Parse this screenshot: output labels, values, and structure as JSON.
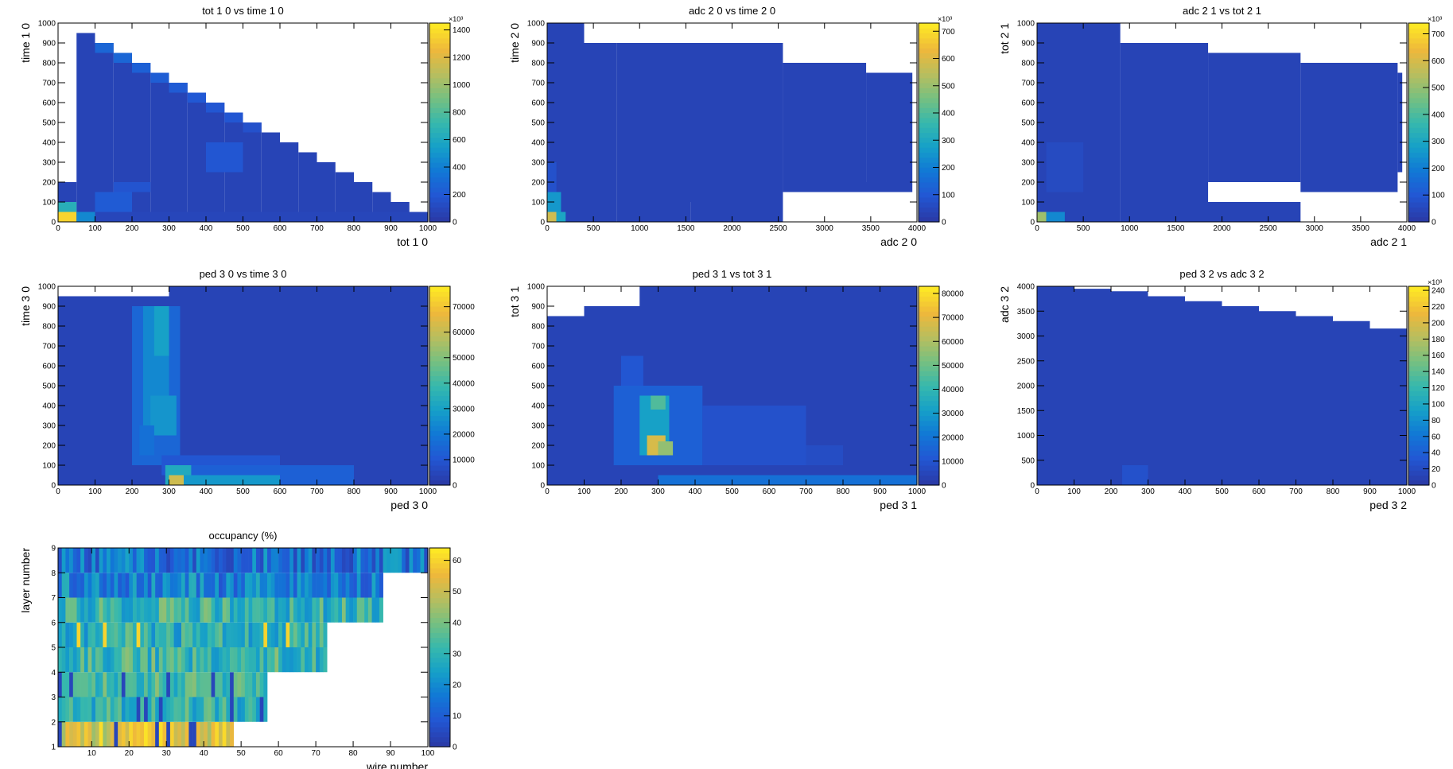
{
  "colorscale": [
    "#2a3ba8",
    "#2257d4",
    "#1178d6",
    "#16a0c8",
    "#36b8ad",
    "#76c081",
    "#b8be5e",
    "#eeb83b",
    "#fde725"
  ],
  "panels": [
    {
      "id": "tot10-time10",
      "chart_data": {
        "type": "heatmap",
        "title": "tot 1 0 vs time 1 0",
        "xlabel": "tot 1 0",
        "ylabel": "time 1 0",
        "xlim": [
          0,
          1000
        ],
        "ylim": [
          0,
          1000
        ],
        "xticks": [
          0,
          100,
          200,
          300,
          400,
          500,
          600,
          700,
          800,
          900,
          1000
        ],
        "yticks": [
          0,
          100,
          200,
          300,
          400,
          500,
          600,
          700,
          800,
          900,
          1000
        ],
        "zmax": 1450,
        "zticks": [
          0,
          200,
          400,
          600,
          800,
          1000,
          1200,
          1400
        ],
        "zexp": "×10³",
        "cells": [
          [
            0,
            50,
            0,
            200,
            0.04
          ],
          [
            50,
            100,
            50,
            950,
            0.04
          ],
          [
            100,
            150,
            50,
            900,
            0.04
          ],
          [
            150,
            200,
            50,
            850,
            0.04
          ],
          [
            200,
            250,
            50,
            800,
            0.04
          ],
          [
            250,
            300,
            50,
            750,
            0.04
          ],
          [
            300,
            350,
            50,
            700,
            0.04
          ],
          [
            350,
            400,
            50,
            650,
            0.04
          ],
          [
            400,
            450,
            50,
            600,
            0.04
          ],
          [
            450,
            500,
            50,
            550,
            0.04
          ],
          [
            500,
            550,
            50,
            500,
            0.04
          ],
          [
            550,
            600,
            50,
            450,
            0.04
          ],
          [
            600,
            650,
            50,
            400,
            0.04
          ],
          [
            650,
            700,
            50,
            350,
            0.04
          ],
          [
            700,
            750,
            50,
            300,
            0.04
          ],
          [
            750,
            800,
            50,
            250,
            0.04
          ],
          [
            800,
            850,
            50,
            200,
            0.04
          ],
          [
            850,
            900,
            50,
            150,
            0.04
          ],
          [
            900,
            950,
            50,
            100,
            0.04
          ],
          [
            950,
            1000,
            50,
            50,
            0.04
          ],
          [
            0,
            1000,
            0,
            50,
            0.05
          ],
          [
            100,
            150,
            850,
            900,
            0.18
          ],
          [
            150,
            200,
            800,
            850,
            0.18
          ],
          [
            200,
            250,
            750,
            800,
            0.16
          ],
          [
            250,
            300,
            700,
            750,
            0.15
          ],
          [
            300,
            350,
            650,
            700,
            0.14
          ],
          [
            350,
            400,
            600,
            650,
            0.13
          ],
          [
            400,
            450,
            550,
            600,
            0.12
          ],
          [
            450,
            500,
            500,
            550,
            0.12
          ],
          [
            500,
            550,
            450,
            500,
            0.1
          ],
          [
            400,
            500,
            250,
            400,
            0.12
          ],
          [
            100,
            200,
            50,
            150,
            0.14
          ],
          [
            150,
            250,
            150,
            200,
            0.11
          ],
          [
            0,
            50,
            0,
            50,
            0.95
          ],
          [
            0,
            50,
            50,
            100,
            0.45
          ],
          [
            50,
            100,
            0,
            50,
            0.3
          ]
        ]
      }
    },
    {
      "id": "adc20-time20",
      "chart_data": {
        "type": "heatmap",
        "title": "adc 2 0 vs time 2 0",
        "xlabel": "adc 2 0",
        "ylabel": "time 2 0",
        "xlim": [
          0,
          4000
        ],
        "ylim": [
          0,
          1000
        ],
        "xticks": [
          0,
          500,
          1000,
          1500,
          2000,
          2500,
          3000,
          3500,
          4000
        ],
        "yticks": [
          0,
          100,
          200,
          300,
          400,
          500,
          600,
          700,
          800,
          900,
          1000
        ],
        "zmax": 730,
        "zticks": [
          0,
          100,
          200,
          300,
          400,
          500,
          600,
          700
        ],
        "zexp": "×10³",
        "cells": [
          [
            0,
            750,
            0,
            900,
            0.04
          ],
          [
            0,
            400,
            900,
            1000,
            0.04
          ],
          [
            750,
            2550,
            100,
            900,
            0.04
          ],
          [
            2550,
            3450,
            200,
            800,
            0.04
          ],
          [
            3450,
            3950,
            200,
            750,
            0.04
          ],
          [
            1550,
            2550,
            0,
            100,
            0.04
          ],
          [
            2550,
            3950,
            150,
            200,
            0.04
          ],
          [
            750,
            1550,
            0,
            100,
            0.04
          ],
          [
            0,
            150,
            0,
            150,
            0.35
          ],
          [
            0,
            100,
            0,
            50,
            0.8
          ],
          [
            100,
            200,
            0,
            50,
            0.4
          ],
          [
            0,
            100,
            150,
            300,
            0.1
          ]
        ]
      }
    },
    {
      "id": "adc21-tot21",
      "chart_data": {
        "type": "heatmap",
        "title": "adc 2 1 vs tot 2 1",
        "xlabel": "adc 2 1",
        "ylabel": "tot 2 1",
        "xlim": [
          0,
          4000
        ],
        "ylim": [
          0,
          1000
        ],
        "xticks": [
          0,
          500,
          1000,
          1500,
          2000,
          2500,
          3000,
          3500,
          4000
        ],
        "yticks": [
          0,
          100,
          200,
          300,
          400,
          500,
          600,
          700,
          800,
          900,
          1000
        ],
        "zmax": 740,
        "zticks": [
          0,
          100,
          200,
          300,
          400,
          500,
          600,
          700
        ],
        "zexp": "×10³",
        "cells": [
          [
            0,
            900,
            0,
            1000,
            0.04
          ],
          [
            900,
            1850,
            100,
            900,
            0.04
          ],
          [
            1850,
            2850,
            200,
            850,
            0.04
          ],
          [
            2850,
            3900,
            200,
            800,
            0.04
          ],
          [
            3900,
            3950,
            250,
            750,
            0.04
          ],
          [
            900,
            2850,
            0,
            100,
            0.04
          ],
          [
            2850,
            3900,
            150,
            200,
            0.04
          ],
          [
            100,
            500,
            150,
            400,
            0.07
          ],
          [
            0,
            100,
            0,
            50,
            0.7
          ],
          [
            100,
            300,
            0,
            50,
            0.3
          ]
        ]
      }
    },
    {
      "id": "ped30-time30",
      "chart_data": {
        "type": "heatmap",
        "title": "ped 3 0 vs time 3 0",
        "xlabel": "ped 3 0",
        "ylabel": "time 3 0",
        "xlim": [
          0,
          1000
        ],
        "ylim": [
          0,
          1000
        ],
        "xticks": [
          0,
          100,
          200,
          300,
          400,
          500,
          600,
          700,
          800,
          900,
          1000
        ],
        "yticks": [
          0,
          100,
          200,
          300,
          400,
          500,
          600,
          700,
          800,
          900,
          1000
        ],
        "zmax": 78000,
        "zticks": [
          0,
          10000,
          20000,
          30000,
          40000,
          50000,
          60000,
          70000
        ],
        "zexp": "",
        "cells": [
          [
            0,
            1000,
            0,
            950,
            0.04
          ],
          [
            300,
            1000,
            950,
            1000,
            0.04
          ],
          [
            200,
            330,
            100,
            900,
            0.18
          ],
          [
            230,
            300,
            300,
            900,
            0.3
          ],
          [
            260,
            300,
            650,
            900,
            0.38
          ],
          [
            250,
            320,
            250,
            450,
            0.34
          ],
          [
            220,
            260,
            150,
            300,
            0.22
          ],
          [
            280,
            600,
            50,
            150,
            0.12
          ],
          [
            300,
            800,
            0,
            100,
            0.16
          ],
          [
            290,
            360,
            0,
            100,
            0.42
          ],
          [
            300,
            340,
            0,
            50,
            0.8
          ],
          [
            340,
            600,
            0,
            50,
            0.35
          ]
        ]
      }
    },
    {
      "id": "ped31-tot31",
      "chart_data": {
        "type": "heatmap",
        "title": "ped 3 1 vs tot 3 1",
        "xlabel": "ped 3 1",
        "ylabel": "tot 3 1",
        "xlim": [
          0,
          1000
        ],
        "ylim": [
          0,
          1000
        ],
        "xticks": [
          0,
          100,
          200,
          300,
          400,
          500,
          600,
          700,
          800,
          900,
          1000
        ],
        "yticks": [
          0,
          100,
          200,
          300,
          400,
          500,
          600,
          700,
          800,
          900,
          1000
        ],
        "zmax": 83000,
        "zticks": [
          0,
          10000,
          20000,
          30000,
          40000,
          50000,
          60000,
          70000,
          80000
        ],
        "zexp": "",
        "cells": [
          [
            0,
            1000,
            0,
            850,
            0.04
          ],
          [
            100,
            1000,
            850,
            900,
            0.04
          ],
          [
            250,
            1000,
            900,
            1000,
            0.04
          ],
          [
            180,
            420,
            100,
            500,
            0.16
          ],
          [
            420,
            700,
            100,
            400,
            0.1
          ],
          [
            700,
            800,
            100,
            200,
            0.08
          ],
          [
            250,
            330,
            150,
            450,
            0.38
          ],
          [
            270,
            320,
            150,
            250,
            0.82
          ],
          [
            300,
            340,
            150,
            220,
            0.68
          ],
          [
            280,
            320,
            380,
            450,
            0.55
          ],
          [
            200,
            260,
            500,
            650,
            0.12
          ],
          [
            300,
            1000,
            0,
            50,
            0.22
          ]
        ]
      }
    },
    {
      "id": "ped32-adc32",
      "chart_data": {
        "type": "heatmap",
        "title": "ped 3 2 vs adc 3 2",
        "xlabel": "ped 3 2",
        "ylabel": "adc 3 2",
        "xlim": [
          0,
          1000
        ],
        "ylim": [
          0,
          4000
        ],
        "xticks": [
          0,
          100,
          200,
          300,
          400,
          500,
          600,
          700,
          800,
          900,
          1000
        ],
        "yticks": [
          0,
          500,
          1000,
          1500,
          2000,
          2500,
          3000,
          3500,
          4000
        ],
        "zmax": 245,
        "zticks": [
          0,
          20,
          40,
          60,
          80,
          100,
          120,
          140,
          160,
          180,
          200,
          220,
          240
        ],
        "zexp": "×10³",
        "cells": [
          [
            0,
            100,
            0,
            4000,
            0.04
          ],
          [
            100,
            200,
            0,
            3950,
            0.04
          ],
          [
            200,
            300,
            0,
            3900,
            0.04
          ],
          [
            300,
            400,
            0,
            3800,
            0.04
          ],
          [
            400,
            500,
            0,
            3700,
            0.04
          ],
          [
            500,
            600,
            0,
            3600,
            0.04
          ],
          [
            600,
            700,
            0,
            3500,
            0.04
          ],
          [
            700,
            800,
            0,
            3400,
            0.04
          ],
          [
            800,
            900,
            0,
            3300,
            0.04
          ],
          [
            900,
            1000,
            0,
            3150,
            0.04
          ],
          [
            230,
            300,
            0,
            400,
            0.1
          ]
        ]
      }
    },
    {
      "id": "occupancy",
      "chart_data": {
        "type": "heatmap",
        "title": "occupancy (%)",
        "xlabel": "wire number",
        "ylabel": "layer number",
        "xlim": [
          1,
          100
        ],
        "ylim": [
          1,
          9
        ],
        "xticks": [
          10,
          20,
          30,
          40,
          50,
          60,
          70,
          80,
          90,
          100
        ],
        "yticks": [
          1,
          2,
          3,
          4,
          5,
          6,
          7,
          8,
          9
        ],
        "zmax": 64,
        "zticks": [
          0,
          10,
          20,
          30,
          40,
          50,
          60
        ],
        "zexp": "",
        "layers": [
          {
            "layer": 1,
            "wires": 48,
            "level": 0.86
          },
          {
            "layer": 2,
            "wires": 57,
            "level": 0.5
          },
          {
            "layer": 3,
            "wires": 57,
            "level": 0.55
          },
          {
            "layer": 4,
            "wires": 73,
            "level": 0.5
          },
          {
            "layer": 5,
            "wires": 73,
            "level": 0.48
          },
          {
            "layer": 6,
            "wires": 88,
            "level": 0.5
          },
          {
            "layer": 7,
            "wires": 88,
            "level": 0.28
          },
          {
            "layer": 8,
            "wires": 100,
            "level": 0.22
          }
        ]
      }
    }
  ]
}
